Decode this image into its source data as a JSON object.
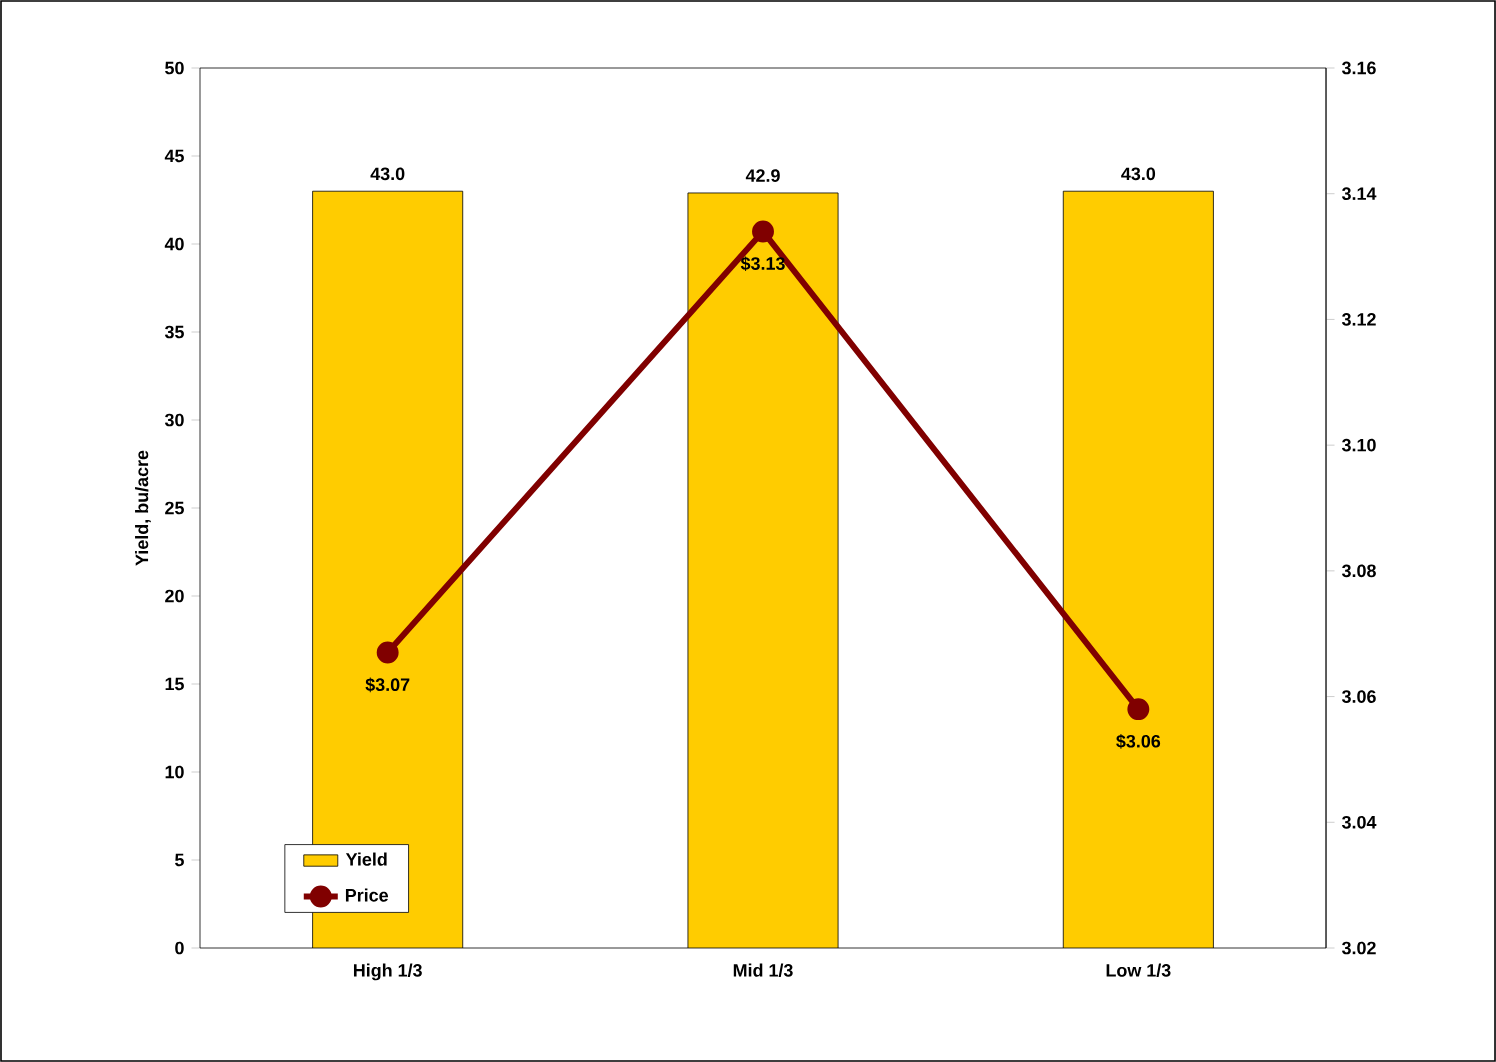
{
  "chart_data": {
    "type": "bar",
    "ylabel": "Yield, bu/acre",
    "categories": [
      "High 1/3",
      "Mid 1/3",
      "Low 1/3"
    ],
    "series": [
      {
        "name": "Yield",
        "color": "#ffcc00",
        "values": [
          43.0,
          42.9,
          43.0
        ],
        "value_labels": [
          "43.0",
          "42.9",
          "43.0"
        ]
      },
      {
        "name": "Price",
        "type": "line",
        "axis": "y2",
        "color": "#800000",
        "values": [
          3.067,
          3.134,
          3.058
        ],
        "value_labels": [
          "$3.07",
          "$3.13",
          "$3.06"
        ]
      }
    ],
    "ylim": [
      0,
      50
    ],
    "yticks": [
      0,
      5,
      10,
      15,
      20,
      25,
      30,
      35,
      40,
      45,
      50
    ],
    "y2lim": [
      3.02,
      3.16
    ],
    "y2ticks": [
      {
        "value": 3.02,
        "label": "3.02"
      },
      {
        "value": 3.04,
        "label": "3.04"
      },
      {
        "value": 3.06,
        "label": "3.06"
      },
      {
        "value": 3.08,
        "label": "3.08"
      },
      {
        "value": 3.1,
        "label": "3.10"
      },
      {
        "value": 3.12,
        "label": "3.12"
      },
      {
        "value": 3.14,
        "label": "3.14"
      },
      {
        "value": 3.16,
        "label": "3.16"
      }
    ],
    "marker": "circle",
    "line_style": "solid",
    "legend": "bottom left",
    "grid": false
  }
}
